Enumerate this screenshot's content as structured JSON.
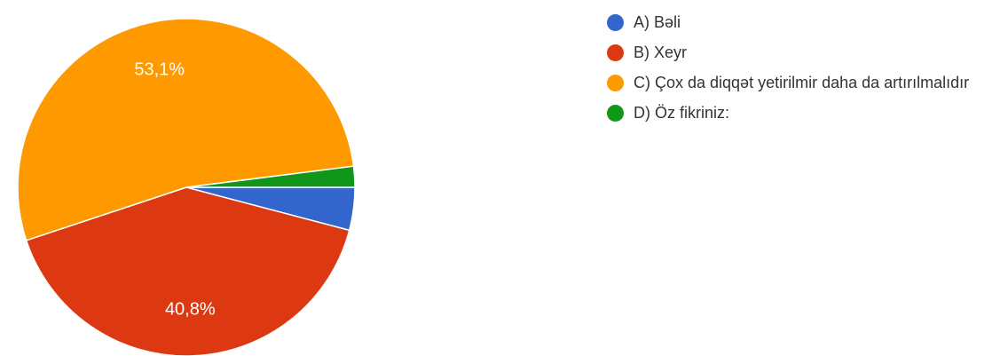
{
  "chart_data": {
    "type": "pie",
    "categories": [
      "A) Bəli",
      "B) Xeyr",
      "C) Çox da diqqət yetirilmir daha da artırılmalıdır",
      "D) Öz fikriniz:"
    ],
    "values": [
      4.1,
      40.8,
      53.1,
      2.0
    ],
    "data_labels": [
      "",
      "40,8%",
      "53,1%",
      ""
    ],
    "colors": [
      "#3366cc",
      "#dc3912",
      "#ff9900",
      "#109618"
    ],
    "start_angle_deg": 90,
    "direction": "clockwise",
    "legend_position": "right"
  }
}
